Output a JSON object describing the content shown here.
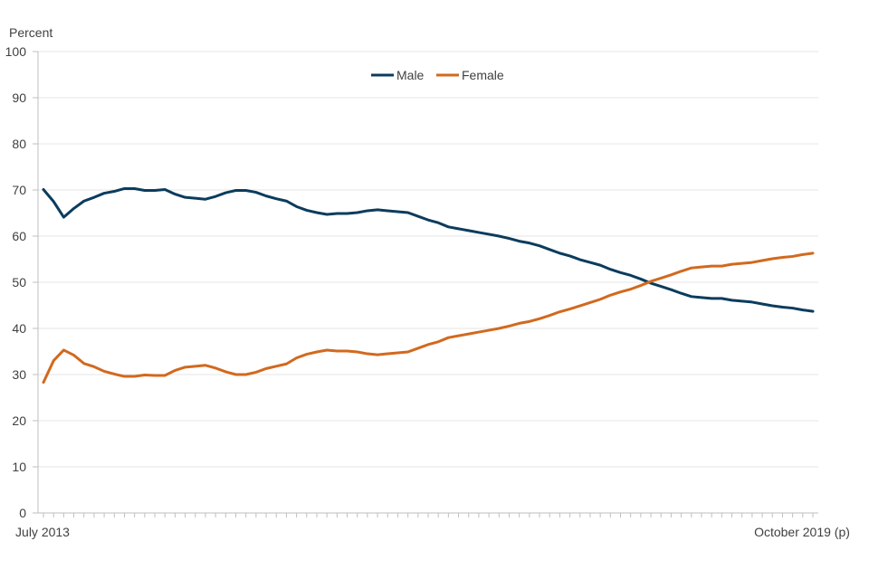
{
  "chart_data": {
    "type": "line",
    "ylabel": "Percent",
    "ylim": [
      0,
      100
    ],
    "yticks": [
      0,
      10,
      20,
      30,
      40,
      50,
      60,
      70,
      80,
      90,
      100
    ],
    "x_start_label": "July 2013",
    "x_end_label": "October 2019 (p)",
    "grid": true,
    "legend_position": "top-center",
    "series": [
      {
        "name": "Male",
        "color": "#0b3c5d",
        "values": [
          70.1,
          67.5,
          64.1,
          66.0,
          67.6,
          68.4,
          69.3,
          69.7,
          70.3,
          70.3,
          69.9,
          69.9,
          70.1,
          69.1,
          68.4,
          68.2,
          68.0,
          68.6,
          69.4,
          69.9,
          69.9,
          69.5,
          68.7,
          68.1,
          67.6,
          66.4,
          65.6,
          65.1,
          64.7,
          64.9,
          64.9,
          65.1,
          65.5,
          65.7,
          65.5,
          65.3,
          65.1,
          64.3,
          63.5,
          62.9,
          62.0,
          61.6,
          61.2,
          60.8,
          60.4,
          60.0,
          59.5,
          58.9,
          58.5,
          57.9,
          57.1,
          56.3,
          55.7,
          54.9,
          54.3,
          53.7,
          52.8,
          52.1,
          51.5,
          50.7,
          49.8,
          49.1,
          48.4,
          47.6,
          46.9,
          46.7,
          46.5,
          46.5,
          46.1,
          45.9,
          45.7,
          45.3,
          44.9,
          44.6,
          44.4,
          44.0,
          43.7
        ]
      },
      {
        "name": "Female",
        "color": "#d2691e",
        "values": [
          28.3,
          33.0,
          35.3,
          34.2,
          32.4,
          31.7,
          30.7,
          30.1,
          29.6,
          29.6,
          29.9,
          29.8,
          29.8,
          30.9,
          31.6,
          31.8,
          32.0,
          31.4,
          30.6,
          30.0,
          30.0,
          30.5,
          31.3,
          31.8,
          32.3,
          33.6,
          34.4,
          34.9,
          35.3,
          35.1,
          35.1,
          34.9,
          34.5,
          34.3,
          34.5,
          34.7,
          34.9,
          35.7,
          36.5,
          37.1,
          38.0,
          38.4,
          38.8,
          39.2,
          39.6,
          40.0,
          40.5,
          41.1,
          41.5,
          42.1,
          42.8,
          43.6,
          44.2,
          44.9,
          45.6,
          46.3,
          47.2,
          47.9,
          48.5,
          49.3,
          50.2,
          50.9,
          51.6,
          52.4,
          53.1,
          53.3,
          53.5,
          53.5,
          53.9,
          54.1,
          54.3,
          54.7,
          55.1,
          55.4,
          55.6,
          56.0,
          56.3
        ]
      }
    ]
  }
}
